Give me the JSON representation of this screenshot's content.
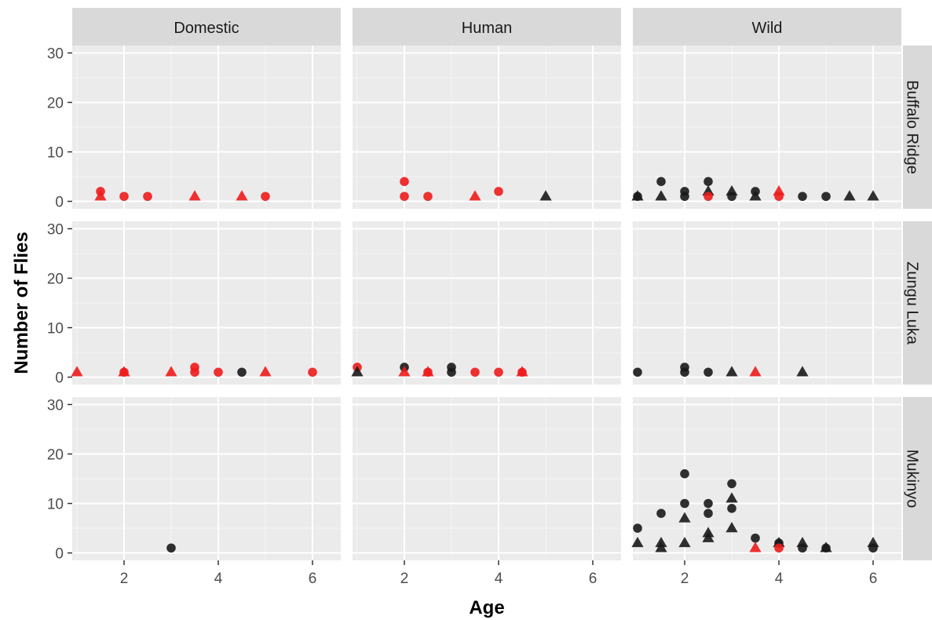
{
  "chart_data": {
    "type": "scatter",
    "title": "",
    "xlabel": "Age",
    "ylabel": "Number of Flies",
    "xlim": [
      0.9,
      6.6
    ],
    "ylim": [
      -1.5,
      31.5
    ],
    "x_ticks": [
      2,
      4,
      6
    ],
    "y_ticks": [
      0,
      10,
      20,
      30
    ],
    "grid": true,
    "legend": "none",
    "facet_columns": [
      "Domestic",
      "Human",
      "Wild"
    ],
    "facet_rows": [
      "Buffalo Ridge",
      "Zungu Luka",
      "Mukinyo"
    ],
    "colors": {
      "red": "#ee1c1c",
      "black": "#1a1a1a",
      "panel_bg": "#ebebeb",
      "strip_bg": "#d9d9d9",
      "grid": "#ffffff"
    },
    "shapes": [
      "circle",
      "triangle"
    ],
    "panels": [
      {
        "row": "Buffalo Ridge",
        "col": "Domestic",
        "points": [
          {
            "x": 1.5,
            "y": 2,
            "shape": "circle",
            "color": "red"
          },
          {
            "x": 1.5,
            "y": 1,
            "shape": "triangle",
            "color": "red"
          },
          {
            "x": 2,
            "y": 1,
            "shape": "circle",
            "color": "red"
          },
          {
            "x": 2.5,
            "y": 1,
            "shape": "circle",
            "color": "red"
          },
          {
            "x": 3.5,
            "y": 1,
            "shape": "triangle",
            "color": "red"
          },
          {
            "x": 4.5,
            "y": 1,
            "shape": "triangle",
            "color": "red"
          },
          {
            "x": 5,
            "y": 1,
            "shape": "circle",
            "color": "red"
          }
        ]
      },
      {
        "row": "Buffalo Ridge",
        "col": "Human",
        "points": [
          {
            "x": 2,
            "y": 4,
            "shape": "circle",
            "color": "red"
          },
          {
            "x": 2,
            "y": 1,
            "shape": "circle",
            "color": "red"
          },
          {
            "x": 2.5,
            "y": 1,
            "shape": "circle",
            "color": "red"
          },
          {
            "x": 3.5,
            "y": 1,
            "shape": "triangle",
            "color": "red"
          },
          {
            "x": 4,
            "y": 2,
            "shape": "circle",
            "color": "red"
          },
          {
            "x": 5,
            "y": 1,
            "shape": "triangle",
            "color": "black"
          }
        ]
      },
      {
        "row": "Buffalo Ridge",
        "col": "Wild",
        "points": [
          {
            "x": 1,
            "y": 1,
            "shape": "triangle",
            "color": "black"
          },
          {
            "x": 1,
            "y": 1,
            "shape": "circle",
            "color": "black"
          },
          {
            "x": 1.5,
            "y": 4,
            "shape": "circle",
            "color": "black"
          },
          {
            "x": 1.5,
            "y": 1,
            "shape": "triangle",
            "color": "black"
          },
          {
            "x": 2,
            "y": 2,
            "shape": "circle",
            "color": "black"
          },
          {
            "x": 2,
            "y": 1,
            "shape": "circle",
            "color": "black"
          },
          {
            "x": 2.5,
            "y": 4,
            "shape": "circle",
            "color": "black"
          },
          {
            "x": 2.5,
            "y": 2,
            "shape": "triangle",
            "color": "black"
          },
          {
            "x": 2.5,
            "y": 1,
            "shape": "circle",
            "color": "red"
          },
          {
            "x": 3,
            "y": 2,
            "shape": "triangle",
            "color": "black"
          },
          {
            "x": 3,
            "y": 1,
            "shape": "circle",
            "color": "black"
          },
          {
            "x": 3.5,
            "y": 2,
            "shape": "circle",
            "color": "black"
          },
          {
            "x": 3.5,
            "y": 1,
            "shape": "triangle",
            "color": "black"
          },
          {
            "x": 4,
            "y": 2,
            "shape": "triangle",
            "color": "red"
          },
          {
            "x": 4,
            "y": 1,
            "shape": "circle",
            "color": "red"
          },
          {
            "x": 4.5,
            "y": 1,
            "shape": "circle",
            "color": "black"
          },
          {
            "x": 5,
            "y": 1,
            "shape": "circle",
            "color": "black"
          },
          {
            "x": 5.5,
            "y": 1,
            "shape": "triangle",
            "color": "black"
          },
          {
            "x": 6,
            "y": 1,
            "shape": "triangle",
            "color": "black"
          }
        ]
      },
      {
        "row": "Zungu Luka",
        "col": "Domestic",
        "points": [
          {
            "x": 1,
            "y": 1,
            "shape": "triangle",
            "color": "red"
          },
          {
            "x": 2,
            "y": 1,
            "shape": "triangle",
            "color": "red"
          },
          {
            "x": 2,
            "y": 1,
            "shape": "circle",
            "color": "red"
          },
          {
            "x": 3,
            "y": 1,
            "shape": "triangle",
            "color": "red"
          },
          {
            "x": 3.5,
            "y": 2,
            "shape": "circle",
            "color": "red"
          },
          {
            "x": 3.5,
            "y": 1,
            "shape": "circle",
            "color": "red"
          },
          {
            "x": 4,
            "y": 1,
            "shape": "circle",
            "color": "red"
          },
          {
            "x": 4.5,
            "y": 1,
            "shape": "circle",
            "color": "black"
          },
          {
            "x": 5,
            "y": 1,
            "shape": "triangle",
            "color": "red"
          },
          {
            "x": 6,
            "y": 1,
            "shape": "circle",
            "color": "red"
          }
        ]
      },
      {
        "row": "Zungu Luka",
        "col": "Human",
        "points": [
          {
            "x": 1,
            "y": 2,
            "shape": "circle",
            "color": "red"
          },
          {
            "x": 1,
            "y": 1,
            "shape": "triangle",
            "color": "black"
          },
          {
            "x": 2,
            "y": 2,
            "shape": "circle",
            "color": "black"
          },
          {
            "x": 2,
            "y": 1,
            "shape": "triangle",
            "color": "red"
          },
          {
            "x": 2.5,
            "y": 1,
            "shape": "triangle",
            "color": "red"
          },
          {
            "x": 2.5,
            "y": 1,
            "shape": "circle",
            "color": "red"
          },
          {
            "x": 3,
            "y": 2,
            "shape": "circle",
            "color": "black"
          },
          {
            "x": 3,
            "y": 1,
            "shape": "circle",
            "color": "black"
          },
          {
            "x": 3.5,
            "y": 1,
            "shape": "circle",
            "color": "red"
          },
          {
            "x": 4,
            "y": 1,
            "shape": "circle",
            "color": "red"
          },
          {
            "x": 4.5,
            "y": 1,
            "shape": "triangle",
            "color": "red"
          },
          {
            "x": 4.5,
            "y": 1,
            "shape": "circle",
            "color": "red"
          }
        ]
      },
      {
        "row": "Zungu Luka",
        "col": "Wild",
        "points": [
          {
            "x": 1,
            "y": 1,
            "shape": "circle",
            "color": "black"
          },
          {
            "x": 2,
            "y": 2,
            "shape": "circle",
            "color": "black"
          },
          {
            "x": 2,
            "y": 1,
            "shape": "circle",
            "color": "black"
          },
          {
            "x": 2.5,
            "y": 1,
            "shape": "circle",
            "color": "black"
          },
          {
            "x": 3,
            "y": 1,
            "shape": "triangle",
            "color": "black"
          },
          {
            "x": 3.5,
            "y": 1,
            "shape": "triangle",
            "color": "red"
          },
          {
            "x": 4.5,
            "y": 1,
            "shape": "triangle",
            "color": "black"
          }
        ]
      },
      {
        "row": "Mukinyo",
        "col": "Domestic",
        "points": [
          {
            "x": 3,
            "y": 1,
            "shape": "circle",
            "color": "black"
          }
        ]
      },
      {
        "row": "Mukinyo",
        "col": "Human",
        "points": []
      },
      {
        "row": "Mukinyo",
        "col": "Wild",
        "points": [
          {
            "x": 1,
            "y": 5,
            "shape": "circle",
            "color": "black"
          },
          {
            "x": 1,
            "y": 2,
            "shape": "triangle",
            "color": "black"
          },
          {
            "x": 1.5,
            "y": 8,
            "shape": "circle",
            "color": "black"
          },
          {
            "x": 1.5,
            "y": 2,
            "shape": "triangle",
            "color": "black"
          },
          {
            "x": 1.5,
            "y": 1,
            "shape": "triangle",
            "color": "black"
          },
          {
            "x": 2,
            "y": 16,
            "shape": "circle",
            "color": "black"
          },
          {
            "x": 2,
            "y": 10,
            "shape": "circle",
            "color": "black"
          },
          {
            "x": 2,
            "y": 7,
            "shape": "triangle",
            "color": "black"
          },
          {
            "x": 2,
            "y": 2,
            "shape": "triangle",
            "color": "black"
          },
          {
            "x": 2.5,
            "y": 10,
            "shape": "circle",
            "color": "black"
          },
          {
            "x": 2.5,
            "y": 8,
            "shape": "circle",
            "color": "black"
          },
          {
            "x": 2.5,
            "y": 4,
            "shape": "triangle",
            "color": "black"
          },
          {
            "x": 2.5,
            "y": 3,
            "shape": "triangle",
            "color": "black"
          },
          {
            "x": 3,
            "y": 14,
            "shape": "circle",
            "color": "black"
          },
          {
            "x": 3,
            "y": 11,
            "shape": "triangle",
            "color": "black"
          },
          {
            "x": 3,
            "y": 9,
            "shape": "circle",
            "color": "black"
          },
          {
            "x": 3,
            "y": 5,
            "shape": "triangle",
            "color": "black"
          },
          {
            "x": 3.5,
            "y": 3,
            "shape": "circle",
            "color": "black"
          },
          {
            "x": 3.5,
            "y": 1,
            "shape": "triangle",
            "color": "red"
          },
          {
            "x": 4,
            "y": 2,
            "shape": "triangle",
            "color": "black"
          },
          {
            "x": 4,
            "y": 2,
            "shape": "circle",
            "color": "black"
          },
          {
            "x": 4,
            "y": 1,
            "shape": "circle",
            "color": "red"
          },
          {
            "x": 4.5,
            "y": 2,
            "shape": "triangle",
            "color": "black"
          },
          {
            "x": 4.5,
            "y": 1,
            "shape": "circle",
            "color": "black"
          },
          {
            "x": 5,
            "y": 1,
            "shape": "triangle",
            "color": "black"
          },
          {
            "x": 5,
            "y": 1,
            "shape": "circle",
            "color": "black"
          },
          {
            "x": 6,
            "y": 2,
            "shape": "triangle",
            "color": "black"
          },
          {
            "x": 6,
            "y": 1,
            "shape": "circle",
            "color": "black"
          }
        ]
      }
    ]
  }
}
